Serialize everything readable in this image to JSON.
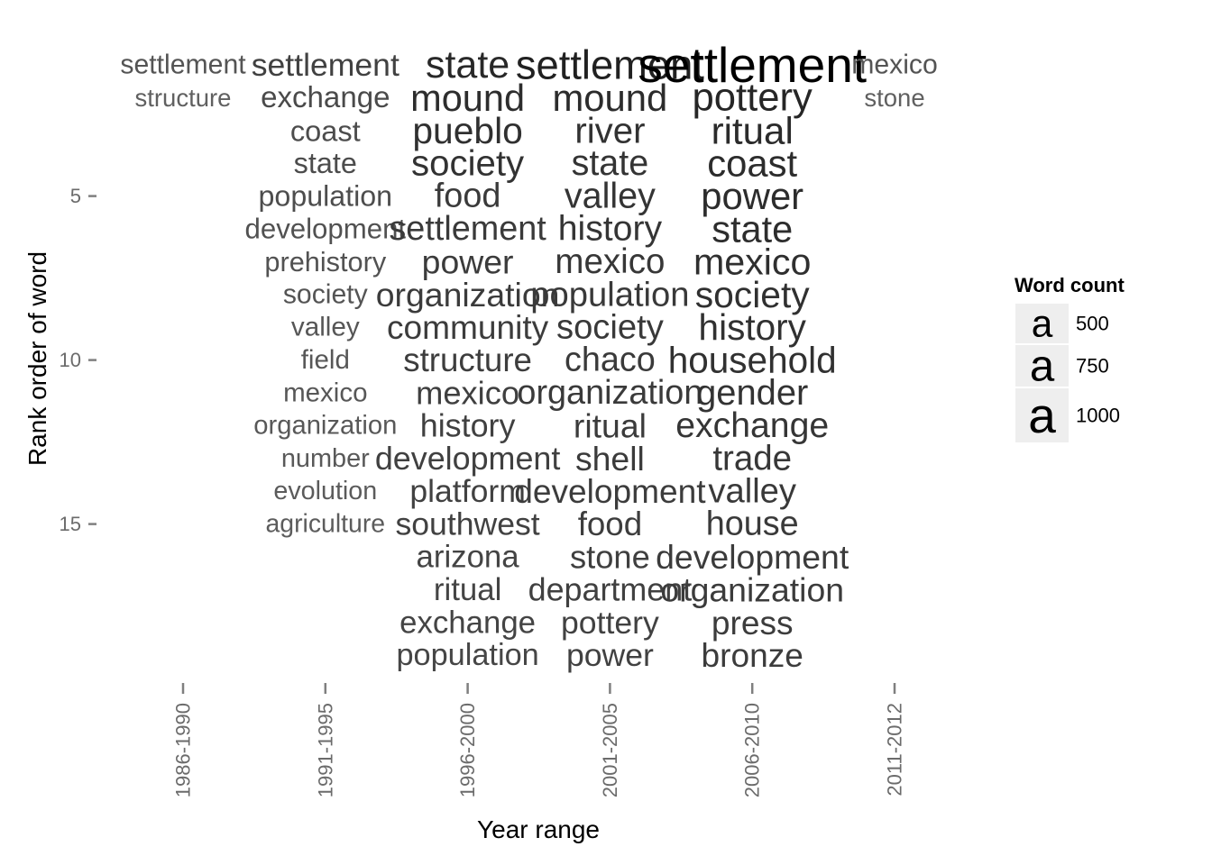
{
  "chart_data": {
    "type": "text-scatter",
    "xlabel": "Year range",
    "ylabel": "Rank order of word",
    "x_categories": [
      "1986-1990",
      "1991-1995",
      "1996-2000",
      "2001-2005",
      "2006-2010",
      "2011-2012"
    ],
    "y_ticks": [
      5,
      10,
      15
    ],
    "y_tick_labels": [
      "5",
      "10",
      "15"
    ],
    "ylim": [
      1,
      19
    ],
    "grid": false,
    "legend": {
      "title": "Word count",
      "position": "right",
      "glyph": "a",
      "entries": [
        {
          "label": "500",
          "value": 500
        },
        {
          "label": "750",
          "value": 750
        },
        {
          "label": "1000",
          "value": 1000
        }
      ]
    },
    "series": [
      {
        "x": "1986-1990",
        "words": [
          {
            "word": "settlement",
            "rank": 1,
            "count": 180
          },
          {
            "word": "structure",
            "rank": 2,
            "count": 130
          }
        ]
      },
      {
        "x": "1991-1995",
        "words": [
          {
            "word": "settlement",
            "rank": 1,
            "count": 300
          },
          {
            "word": "exchange",
            "rank": 2,
            "count": 240
          },
          {
            "word": "coast",
            "rank": 3,
            "count": 230
          },
          {
            "word": "state",
            "rank": 4,
            "count": 225
          },
          {
            "word": "population",
            "rank": 5,
            "count": 220
          },
          {
            "word": "development",
            "rank": 6,
            "count": 200
          },
          {
            "word": "prehistory",
            "rank": 7,
            "count": 190
          },
          {
            "word": "society",
            "rank": 8,
            "count": 180
          },
          {
            "word": "valley",
            "rank": 9,
            "count": 170
          },
          {
            "word": "field",
            "rank": 10,
            "count": 165
          },
          {
            "word": "mexico",
            "rank": 11,
            "count": 165
          },
          {
            "word": "organization",
            "rank": 12,
            "count": 160
          },
          {
            "word": "number",
            "rank": 13,
            "count": 155
          },
          {
            "word": "evolution",
            "rank": 14,
            "count": 150
          },
          {
            "word": "agriculture",
            "rank": 15,
            "count": 145
          }
        ]
      },
      {
        "x": "1996-2000",
        "words": [
          {
            "word": "state",
            "rank": 1,
            "count": 520
          },
          {
            "word": "mound",
            "rank": 2,
            "count": 470
          },
          {
            "word": "pueblo",
            "rank": 3,
            "count": 450
          },
          {
            "word": "society",
            "rank": 4,
            "count": 430
          },
          {
            "word": "food",
            "rank": 5,
            "count": 360
          },
          {
            "word": "settlement",
            "rank": 6,
            "count": 360
          },
          {
            "word": "power",
            "rank": 7,
            "count": 350
          },
          {
            "word": "organization",
            "rank": 8,
            "count": 350
          },
          {
            "word": "community",
            "rank": 9,
            "count": 340
          },
          {
            "word": "structure",
            "rank": 10,
            "count": 330
          },
          {
            "word": "mexico",
            "rank": 11,
            "count": 320
          },
          {
            "word": "history",
            "rank": 12,
            "count": 310
          },
          {
            "word": "development",
            "rank": 13,
            "count": 310
          },
          {
            "word": "platform",
            "rank": 14,
            "count": 300
          },
          {
            "word": "southwest",
            "rank": 15,
            "count": 300
          },
          {
            "word": "arizona",
            "rank": 16,
            "count": 280
          },
          {
            "word": "ritual",
            "rank": 17,
            "count": 280
          },
          {
            "word": "exchange",
            "rank": 18,
            "count": 280
          },
          {
            "word": "population",
            "rank": 19,
            "count": 270
          }
        ]
      },
      {
        "x": "2001-2005",
        "words": [
          {
            "word": "settlement",
            "rank": 1,
            "count": 600
          },
          {
            "word": "mound",
            "rank": 2,
            "count": 480
          },
          {
            "word": "river",
            "rank": 3,
            "count": 430
          },
          {
            "word": "state",
            "rank": 4,
            "count": 410
          },
          {
            "word": "valley",
            "rank": 5,
            "count": 410
          },
          {
            "word": "history",
            "rank": 6,
            "count": 400
          },
          {
            "word": "mexico",
            "rank": 7,
            "count": 380
          },
          {
            "word": "population",
            "rank": 8,
            "count": 370
          },
          {
            "word": "society",
            "rank": 9,
            "count": 370
          },
          {
            "word": "chaco",
            "rank": 10,
            "count": 360
          },
          {
            "word": "organization",
            "rank": 11,
            "count": 360
          },
          {
            "word": "ritual",
            "rank": 12,
            "count": 350
          },
          {
            "word": "shell",
            "rank": 13,
            "count": 350
          },
          {
            "word": "development",
            "rank": 14,
            "count": 340
          },
          {
            "word": "food",
            "rank": 15,
            "count": 330
          },
          {
            "word": "stone",
            "rank": 16,
            "count": 320
          },
          {
            "word": "department",
            "rank": 17,
            "count": 310
          },
          {
            "word": "pottery",
            "rank": 18,
            "count": 300
          },
          {
            "word": "power",
            "rank": 19,
            "count": 300
          }
        ]
      },
      {
        "x": "2006-2010",
        "words": [
          {
            "word": "settlement",
            "rank": 1,
            "count": 1000
          },
          {
            "word": "pottery",
            "rank": 2,
            "count": 540
          },
          {
            "word": "ritual",
            "rank": 3,
            "count": 490
          },
          {
            "word": "coast",
            "rank": 4,
            "count": 480
          },
          {
            "word": "power",
            "rank": 5,
            "count": 480
          },
          {
            "word": "state",
            "rank": 6,
            "count": 470
          },
          {
            "word": "mexico",
            "rank": 7,
            "count": 460
          },
          {
            "word": "society",
            "rank": 8,
            "count": 450
          },
          {
            "word": "history",
            "rank": 9,
            "count": 440
          },
          {
            "word": "household",
            "rank": 10,
            "count": 440
          },
          {
            "word": "gender",
            "rank": 11,
            "count": 420
          },
          {
            "word": "exchange",
            "rank": 12,
            "count": 400
          },
          {
            "word": "trade",
            "rank": 13,
            "count": 380
          },
          {
            "word": "valley",
            "rank": 14,
            "count": 370
          },
          {
            "word": "house",
            "rank": 15,
            "count": 360
          },
          {
            "word": "development",
            "rank": 16,
            "count": 350
          },
          {
            "word": "organization",
            "rank": 17,
            "count": 350
          },
          {
            "word": "press",
            "rank": 18,
            "count": 340
          },
          {
            "word": "bronze",
            "rank": 19,
            "count": 340
          }
        ]
      },
      {
        "x": "2011-2012",
        "words": [
          {
            "word": "mexico",
            "rank": 1,
            "count": 180
          },
          {
            "word": "stone",
            "rank": 2,
            "count": 130
          }
        ]
      }
    ]
  }
}
